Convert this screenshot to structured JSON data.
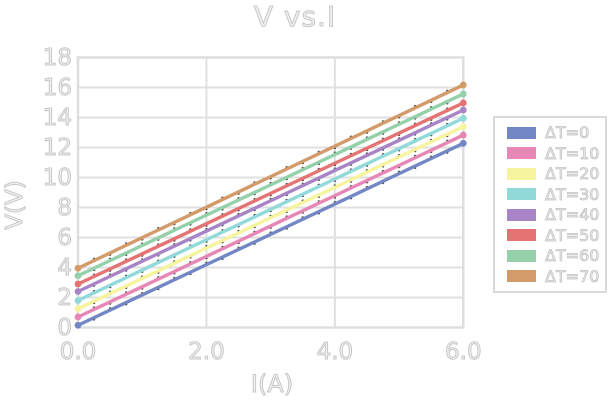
{
  "title": "V vs.I",
  "colors": {
    "background": "#ffffff",
    "grid": "#e0e0e0",
    "plot_border": "#dedede",
    "text": "#d9d9d9",
    "legend_border": "#d9d9d9",
    "marker_dot": "#2a2a2a"
  },
  "axes": {
    "x_tick_values": [
      0,
      2,
      4,
      6
    ],
    "x_tick_labels": [
      "0.0",
      "2.0",
      "4.0",
      "6.0"
    ],
    "y_tick_values": [
      0,
      2,
      4,
      6,
      8,
      10,
      12,
      14,
      16,
      18
    ],
    "y_tick_labels": [
      "0",
      "2",
      "4",
      "6",
      "8",
      "10",
      "12",
      "14",
      "16",
      "18"
    ]
  },
  "chart_data": {
    "type": "line",
    "title": "V vs.I",
    "xlabel": "I(A)",
    "ylabel": "V(V)",
    "xlim": [
      0,
      6
    ],
    "ylim": [
      0,
      18
    ],
    "grid": true,
    "legend_position": "right",
    "x": [
      0,
      1,
      2,
      3,
      4,
      5,
      6
    ],
    "series": [
      {
        "name": "ΔT=0",
        "color": "#7487c5",
        "values": [
          0.15,
          2.17,
          4.19,
          6.21,
          8.23,
          10.26,
          12.28
        ]
      },
      {
        "name": "ΔT=10",
        "color": "#e687b5",
        "values": [
          0.7,
          2.72,
          4.74,
          6.77,
          8.79,
          10.81,
          12.83
        ]
      },
      {
        "name": "ΔT=20",
        "color": "#f7f49e",
        "values": [
          1.25,
          3.27,
          5.3,
          7.32,
          9.34,
          11.37,
          13.39
        ]
      },
      {
        "name": "ΔT=30",
        "color": "#92dada",
        "values": [
          1.8,
          3.83,
          5.85,
          7.88,
          9.9,
          11.93,
          13.95
        ]
      },
      {
        "name": "ΔT=40",
        "color": "#a884c6",
        "values": [
          2.4,
          4.42,
          6.43,
          8.45,
          10.47,
          12.48,
          14.5
        ]
      },
      {
        "name": "ΔT=50",
        "color": "#e57373",
        "values": [
          2.9,
          4.91,
          6.92,
          8.94,
          10.95,
          12.96,
          14.97
        ]
      },
      {
        "name": "ΔT=60",
        "color": "#94d0aa",
        "values": [
          3.45,
          5.47,
          7.49,
          9.51,
          11.53,
          13.55,
          15.57
        ]
      },
      {
        "name": "ΔT=70",
        "color": "#d39a6a",
        "values": [
          3.95,
          5.99,
          8.02,
          10.06,
          12.09,
          14.13,
          16.17
        ]
      }
    ]
  }
}
